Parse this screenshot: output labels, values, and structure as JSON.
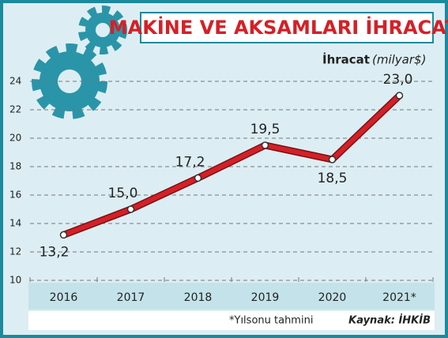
{
  "chart_data": {
    "type": "line",
    "title": "MAKİNE VE AKSAMLARI İHRACATI",
    "y_label": "İhracat",
    "y_unit": "(milyar$)",
    "categories": [
      "2016",
      "2017",
      "2018",
      "2019",
      "2020",
      "2021*"
    ],
    "values": [
      13.2,
      15.0,
      17.2,
      19.5,
      18.5,
      23.0
    ],
    "value_labels": [
      "13,2",
      "15,0",
      "17,2",
      "19,5",
      "18,5",
      "23,0"
    ],
    "color": "#d42027",
    "ylim": [
      10,
      24
    ],
    "yticks": [
      10,
      12,
      14,
      16,
      18,
      20,
      22,
      24
    ],
    "grid": true,
    "footnote": "*Yılsonu tahmini",
    "source": "Kaynak: İHKİB"
  }
}
